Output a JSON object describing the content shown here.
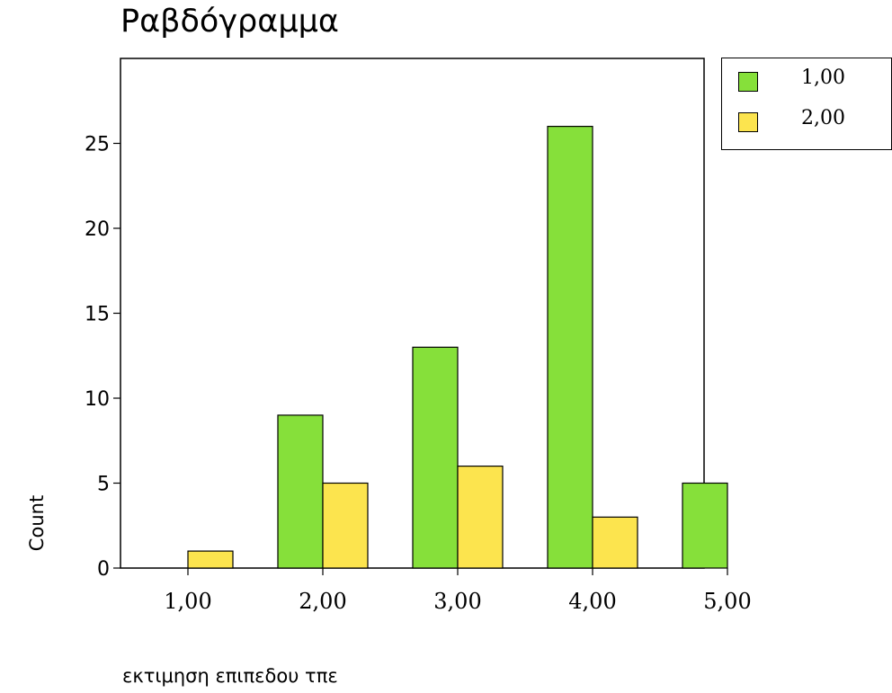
{
  "colors": {
    "series1": "#86E03A",
    "series2": "#FCE44E"
  },
  "chart_data": {
    "type": "bar",
    "title": "Ραβδόγραμμα",
    "xlabel": "εκτιμηση επιπεδου τπε",
    "ylabel": "Count",
    "categories": [
      "1,00",
      "2,00",
      "3,00",
      "4,00",
      "5,00"
    ],
    "series": [
      {
        "name": "1,00",
        "values": [
          0,
          9,
          13,
          26,
          5
        ]
      },
      {
        "name": "2,00",
        "values": [
          1,
          5,
          6,
          3,
          0
        ]
      }
    ],
    "ylim": [
      0,
      29.5
    ],
    "yticks": [
      0,
      5,
      10,
      15,
      20,
      25
    ],
    "ytick_labels": [
      "0",
      "5",
      "10",
      "15",
      "20",
      "25"
    ],
    "grid": false,
    "legend_position": "top-right-outside"
  }
}
